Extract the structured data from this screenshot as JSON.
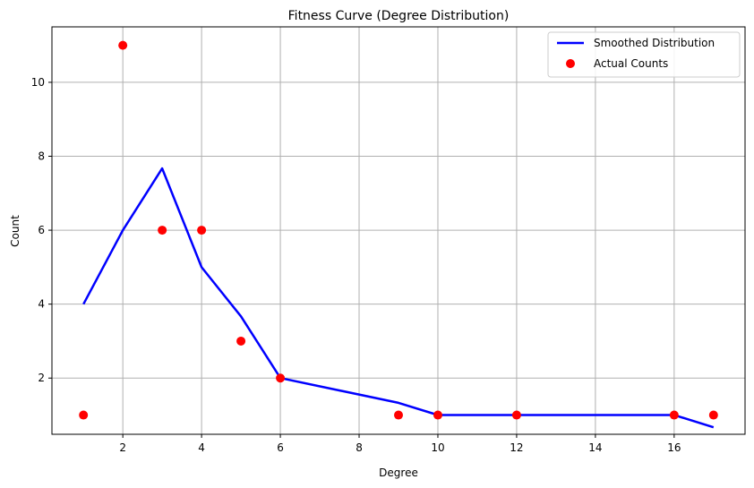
{
  "chart_data": {
    "type": "line",
    "title": "Fitness Curve (Degree Distribution)",
    "xlabel": "Degree",
    "ylabel": "Count",
    "xlim": [
      0.2,
      17.8
    ],
    "ylim": [
      0.48,
      11.5
    ],
    "xticks": [
      2,
      4,
      6,
      8,
      10,
      12,
      14,
      16
    ],
    "yticks": [
      2,
      4,
      6,
      8,
      10
    ],
    "grid": true,
    "legend_position": "top-right",
    "series": [
      {
        "name": "Smoothed Distribution",
        "kind": "line",
        "color": "#0000ff",
        "x": [
          1,
          2,
          3,
          4,
          5,
          6,
          9,
          10,
          12,
          16,
          17
        ],
        "y": [
          4.0,
          6.0,
          7.67,
          5.0,
          3.67,
          2.0,
          1.33,
          1.0,
          1.0,
          1.0,
          0.67
        ]
      },
      {
        "name": "Actual Counts",
        "kind": "scatter",
        "color": "#ff0000",
        "x": [
          1,
          2,
          3,
          4,
          5,
          6,
          9,
          10,
          12,
          16,
          17
        ],
        "y": [
          1,
          11,
          6,
          6,
          3,
          2,
          1,
          1,
          1,
          1,
          1
        ]
      }
    ]
  }
}
